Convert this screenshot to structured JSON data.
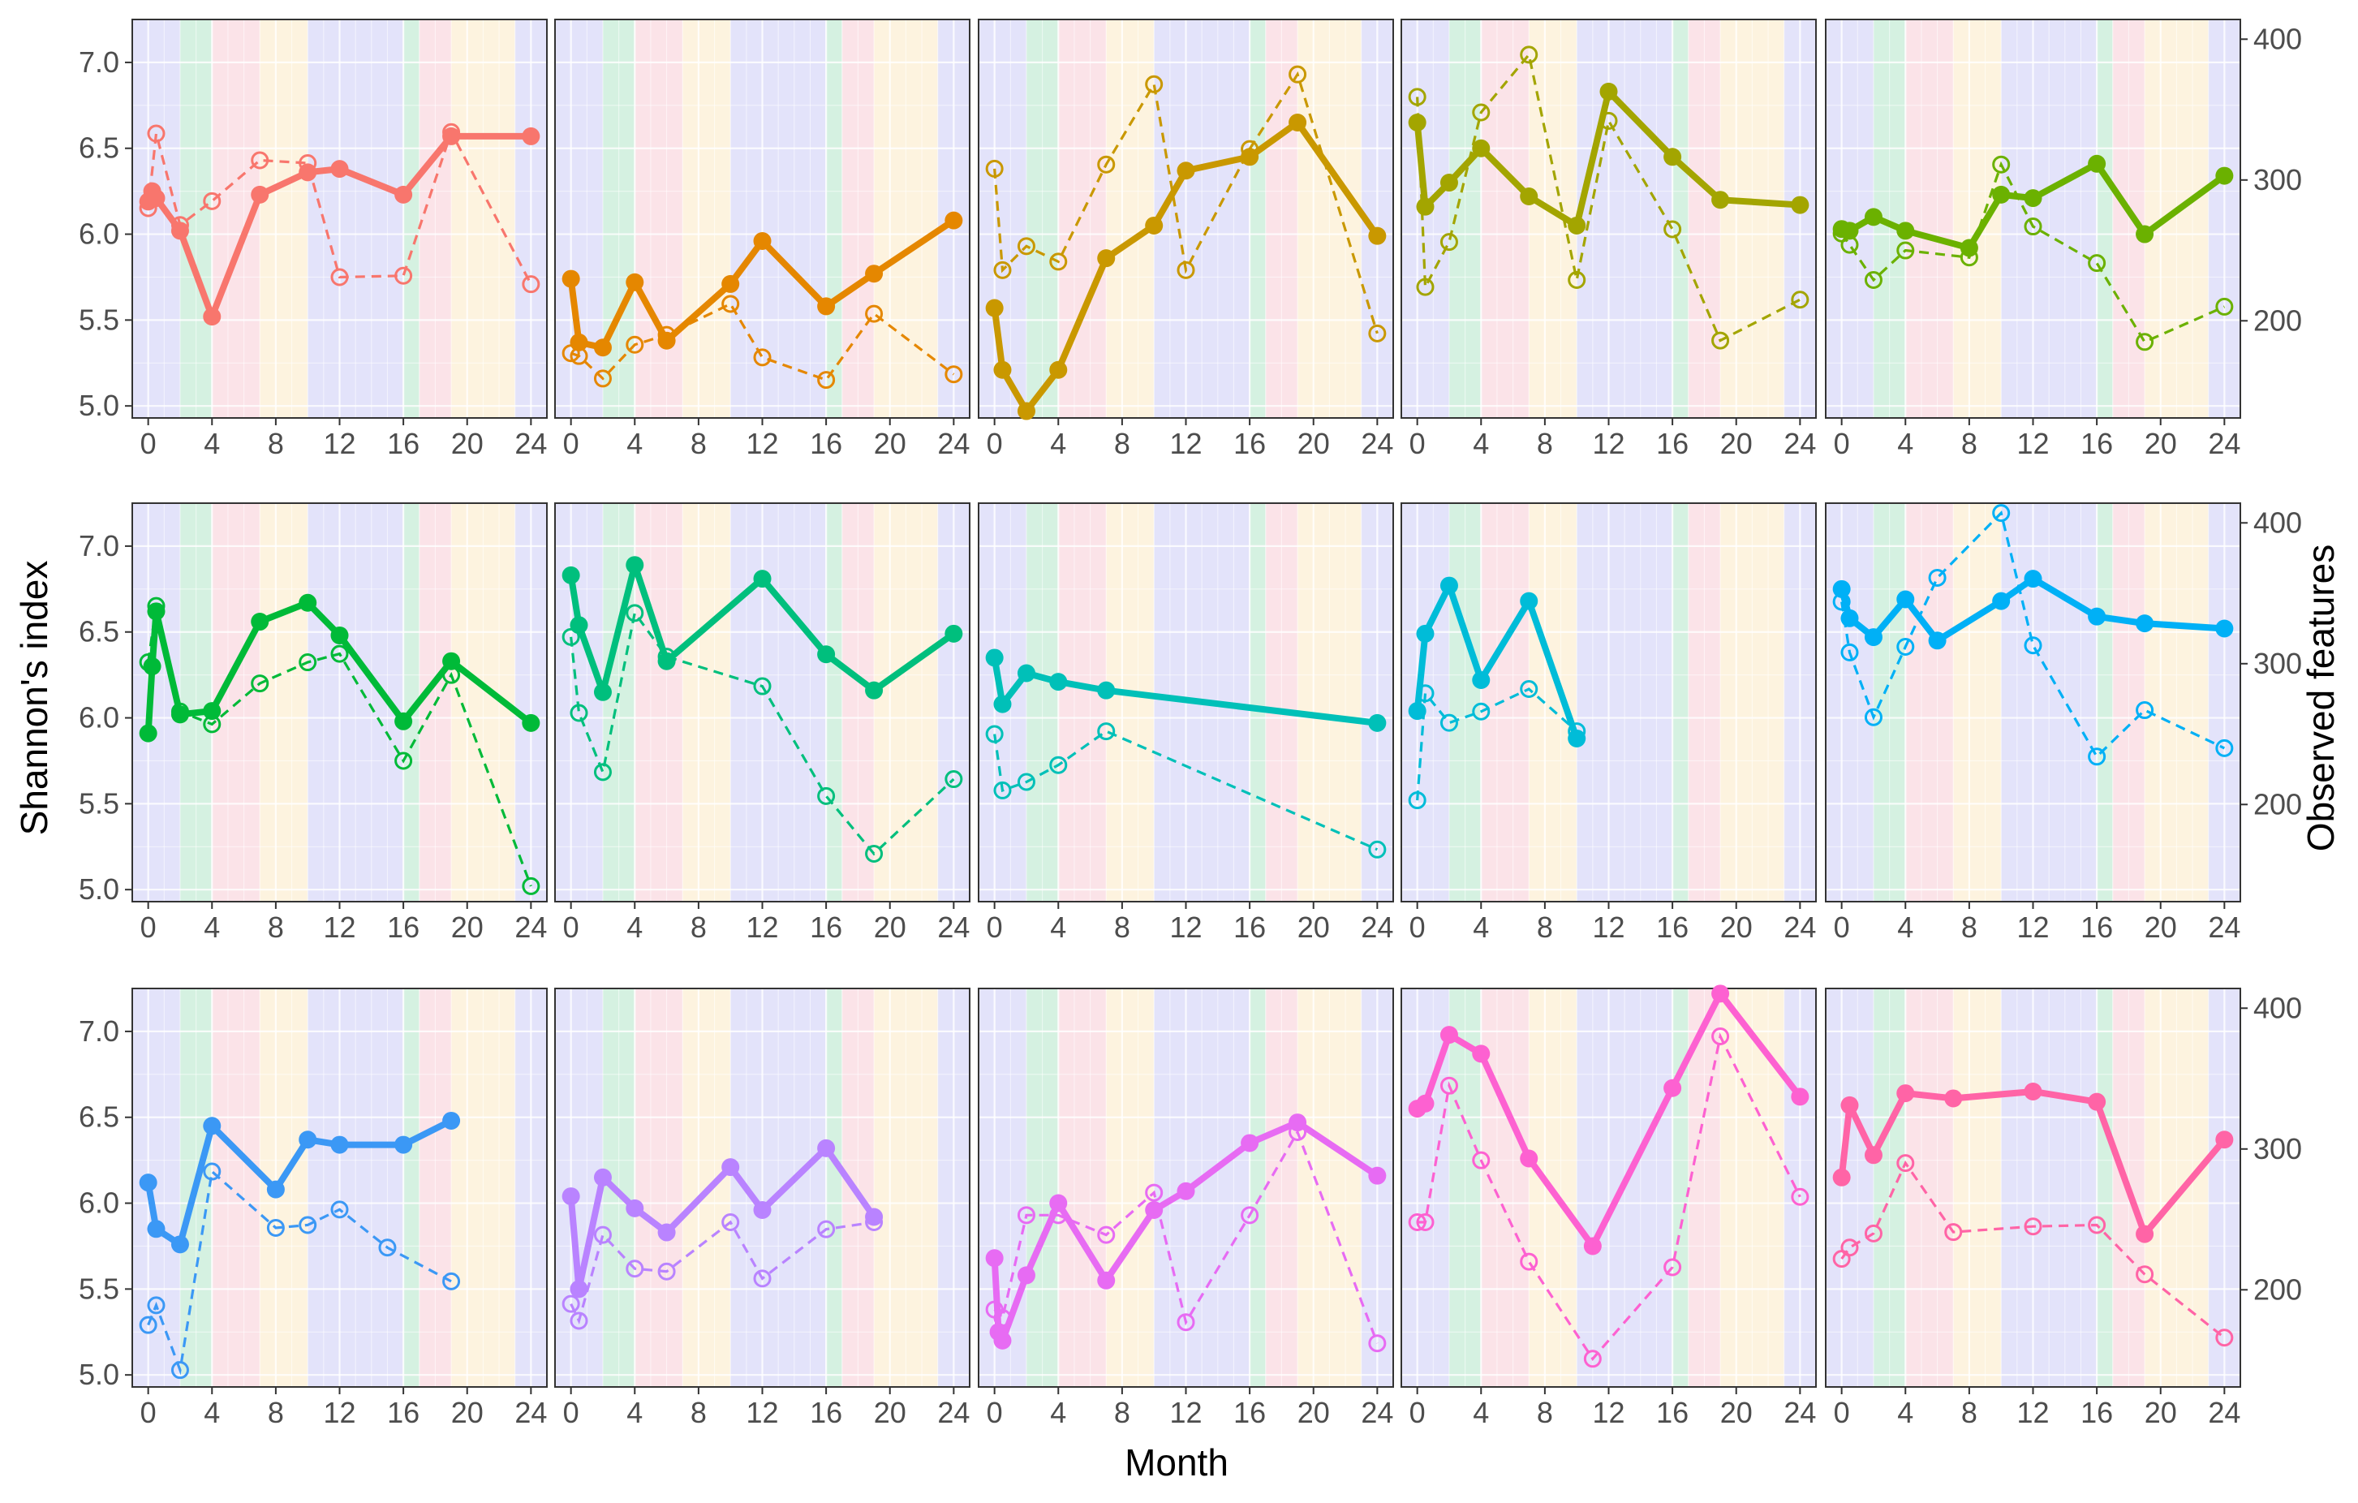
{
  "chart_data": {
    "type": "line",
    "layout": "3 x 5 facet grid",
    "xlabel": "Month",
    "ylabel_left": "Shannon's index",
    "ylabel_right": "Observed features",
    "x_ticks": [
      0,
      4,
      8,
      12,
      16,
      20,
      24
    ],
    "x_range": [
      -1,
      25
    ],
    "left_ticks": [
      "5.0",
      "5.5",
      "6.0",
      "6.5",
      "7.0"
    ],
    "left_range": [
      4.93,
      7.25
    ],
    "right_ticks": [
      "200",
      "300",
      "400"
    ],
    "right_range": [
      131,
      414
    ],
    "legend": {
      "solid line, filled points": "Shannon's index (left axis)",
      "dashed line, open points": "Observed features (right axis)"
    },
    "background_bands": [
      {
        "from": -1,
        "to": 2,
        "color": "#e3e3fa"
      },
      {
        "from": 2,
        "to": 4,
        "color": "#d5f1e1"
      },
      {
        "from": 4,
        "to": 7,
        "color": "#fbe3e8"
      },
      {
        "from": 7,
        "to": 10,
        "color": "#fdf3df"
      },
      {
        "from": 10,
        "to": 16,
        "color": "#e3e3fa"
      },
      {
        "from": 16,
        "to": 17,
        "color": "#d5f1e1"
      },
      {
        "from": 17,
        "to": 19,
        "color": "#fbe3e8"
      },
      {
        "from": 19,
        "to": 23,
        "color": "#fdf3df"
      },
      {
        "from": 23,
        "to": 25,
        "color": "#e3e3fa"
      }
    ],
    "panels": [
      {
        "color": "#f8766d",
        "shannon": [
          [
            0,
            6.19
          ],
          [
            0.25,
            6.25
          ],
          [
            0.5,
            6.21
          ],
          [
            2,
            6.02
          ],
          [
            4,
            5.52
          ],
          [
            7,
            6.23
          ],
          [
            10,
            6.36
          ],
          [
            12,
            6.38
          ],
          [
            16,
            6.23
          ],
          [
            19,
            6.57
          ],
          [
            24,
            6.57
          ]
        ],
        "observed": [
          [
            0,
            280
          ],
          [
            0.5,
            333
          ],
          [
            2,
            268
          ],
          [
            4,
            285
          ],
          [
            7,
            314
          ],
          [
            10,
            312
          ],
          [
            12,
            231
          ],
          [
            16,
            232
          ],
          [
            19,
            334
          ],
          [
            24,
            226
          ]
        ]
      },
      {
        "color": "#e58700",
        "shannon": [
          [
            0,
            5.74
          ],
          [
            0.5,
            5.37
          ],
          [
            2,
            5.34
          ],
          [
            4,
            5.72
          ],
          [
            6,
            5.38
          ],
          [
            10,
            5.71
          ],
          [
            12,
            5.96
          ],
          [
            16,
            5.58
          ],
          [
            19,
            5.77
          ],
          [
            24,
            6.08
          ]
        ],
        "observed": [
          [
            0,
            177
          ],
          [
            0.5,
            175
          ],
          [
            2,
            159
          ],
          [
            4,
            183
          ],
          [
            6,
            190
          ],
          [
            10,
            212
          ],
          [
            12,
            174
          ],
          [
            16,
            158
          ],
          [
            19,
            205
          ],
          [
            24,
            162
          ]
        ]
      },
      {
        "color": "#c99800",
        "shannon": [
          [
            0,
            5.57
          ],
          [
            0.5,
            5.21
          ],
          [
            2,
            4.97
          ],
          [
            4,
            5.21
          ],
          [
            7,
            5.86
          ],
          [
            10,
            6.05
          ],
          [
            12,
            6.37
          ],
          [
            16,
            6.45
          ],
          [
            19,
            6.65
          ],
          [
            24,
            5.99
          ]
        ],
        "observed": [
          [
            0,
            308
          ],
          [
            0.5,
            236
          ],
          [
            2,
            253
          ],
          [
            4,
            242
          ],
          [
            7,
            311
          ],
          [
            10,
            368
          ],
          [
            12,
            236
          ],
          [
            16,
            322
          ],
          [
            19,
            375
          ],
          [
            24,
            191
          ]
        ]
      },
      {
        "color": "#a3a500",
        "shannon": [
          [
            0,
            6.65
          ],
          [
            0.5,
            6.16
          ],
          [
            2,
            6.3
          ],
          [
            4,
            6.5
          ],
          [
            7,
            6.22
          ],
          [
            10,
            6.05
          ],
          [
            12,
            6.83
          ],
          [
            16,
            6.45
          ],
          [
            19,
            6.2
          ],
          [
            24,
            6.17
          ]
        ],
        "observed": [
          [
            0,
            359
          ],
          [
            0.5,
            224
          ],
          [
            2,
            256
          ],
          [
            4,
            348
          ],
          [
            7,
            389
          ],
          [
            10,
            229
          ],
          [
            12,
            342
          ],
          [
            16,
            265
          ],
          [
            19,
            186
          ],
          [
            24,
            215
          ]
        ]
      },
      {
        "color": "#6bb100",
        "shannon": [
          [
            0,
            6.03
          ],
          [
            0.5,
            6.02
          ],
          [
            2,
            6.1
          ],
          [
            4,
            6.02
          ],
          [
            8,
            5.92
          ],
          [
            10,
            6.23
          ],
          [
            12,
            6.21
          ],
          [
            16,
            6.41
          ],
          [
            19,
            6.0
          ],
          [
            24,
            6.34
          ]
        ],
        "observed": [
          [
            0,
            262
          ],
          [
            0.5,
            254
          ],
          [
            2,
            229
          ],
          [
            4,
            250
          ],
          [
            8,
            245
          ],
          [
            10,
            311
          ],
          [
            12,
            267
          ],
          [
            16,
            241
          ],
          [
            19,
            185
          ],
          [
            24,
            210
          ]
        ]
      },
      {
        "color": "#00ba38",
        "shannon": [
          [
            0,
            5.91
          ],
          [
            0.25,
            6.3
          ],
          [
            0.5,
            6.62
          ],
          [
            2,
            6.02
          ],
          [
            4,
            6.04
          ],
          [
            7,
            6.56
          ],
          [
            10,
            6.67
          ],
          [
            12,
            6.48
          ],
          [
            16,
            5.98
          ],
          [
            19,
            6.33
          ],
          [
            24,
            5.97
          ]
        ],
        "observed": [
          [
            0,
            301
          ],
          [
            0.5,
            341
          ],
          [
            2,
            266
          ],
          [
            4,
            257
          ],
          [
            7,
            286
          ],
          [
            10,
            301
          ],
          [
            12,
            307
          ],
          [
            16,
            231
          ],
          [
            19,
            292
          ],
          [
            24,
            142
          ]
        ]
      },
      {
        "color": "#00bf7d",
        "shannon": [
          [
            0,
            6.83
          ],
          [
            0.5,
            6.54
          ],
          [
            2,
            6.15
          ],
          [
            4,
            6.89
          ],
          [
            6,
            6.33
          ],
          [
            12,
            6.81
          ],
          [
            16,
            6.37
          ],
          [
            19,
            6.16
          ],
          [
            24,
            6.49
          ]
        ],
        "observed": [
          [
            0,
            319
          ],
          [
            0.5,
            265
          ],
          [
            2,
            223
          ],
          [
            4,
            336
          ],
          [
            6,
            305
          ],
          [
            12,
            284
          ],
          [
            16,
            206
          ],
          [
            19,
            165
          ],
          [
            24,
            218
          ]
        ]
      },
      {
        "color": "#00c0b8",
        "shannon": [
          [
            0,
            6.35
          ],
          [
            0.5,
            6.08
          ],
          [
            2,
            6.26
          ],
          [
            4,
            6.21
          ],
          [
            7,
            6.16
          ],
          [
            24,
            5.97
          ]
        ],
        "observed": [
          [
            0,
            250
          ],
          [
            0.5,
            210
          ],
          [
            2,
            216
          ],
          [
            4,
            228
          ],
          [
            7,
            252
          ],
          [
            24,
            168
          ]
        ]
      },
      {
        "color": "#00bcd8",
        "shannon": [
          [
            0,
            6.04
          ],
          [
            0.5,
            6.49
          ],
          [
            2,
            6.77
          ],
          [
            4,
            6.22
          ],
          [
            7,
            6.68
          ],
          [
            10,
            5.88
          ]
        ],
        "observed": [
          [
            0,
            203
          ],
          [
            0.5,
            279
          ],
          [
            2,
            258
          ],
          [
            4,
            266
          ],
          [
            7,
            282
          ],
          [
            10,
            252
          ]
        ]
      },
      {
        "color": "#00b0f6",
        "shannon": [
          [
            0,
            6.75
          ],
          [
            0.5,
            6.58
          ],
          [
            2,
            6.47
          ],
          [
            4,
            6.69
          ],
          [
            6,
            6.45
          ],
          [
            10,
            6.68
          ],
          [
            12,
            6.81
          ],
          [
            16,
            6.59
          ],
          [
            19,
            6.55
          ],
          [
            24,
            6.52
          ]
        ],
        "observed": [
          [
            0,
            344
          ],
          [
            0.5,
            308
          ],
          [
            2,
            262
          ],
          [
            4,
            312
          ],
          [
            6,
            361
          ],
          [
            10,
            407
          ],
          [
            12,
            313
          ],
          [
            16,
            234
          ],
          [
            19,
            267
          ],
          [
            24,
            240
          ]
        ]
      },
      {
        "color": "#3b98f5",
        "shannon": [
          [
            0,
            6.12
          ],
          [
            0.5,
            5.85
          ],
          [
            2,
            5.76
          ],
          [
            4,
            6.45
          ],
          [
            8,
            6.08
          ],
          [
            10,
            6.37
          ],
          [
            12,
            6.34
          ],
          [
            16,
            6.34
          ],
          [
            19,
            6.48
          ]
        ],
        "observed": [
          [
            0,
            175
          ],
          [
            0.5,
            189
          ],
          [
            2,
            143
          ],
          [
            4,
            284
          ],
          [
            8,
            244
          ],
          [
            10,
            246
          ],
          [
            12,
            257
          ],
          [
            15,
            230
          ],
          [
            19,
            206
          ]
        ]
      },
      {
        "color": "#b983ff",
        "shannon": [
          [
            0,
            6.04
          ],
          [
            0.5,
            5.5
          ],
          [
            2,
            6.15
          ],
          [
            4,
            5.97
          ],
          [
            6,
            5.83
          ],
          [
            10,
            6.21
          ],
          [
            12,
            5.96
          ],
          [
            16,
            6.32
          ],
          [
            19,
            5.92
          ]
        ],
        "observed": [
          [
            0,
            190
          ],
          [
            0.5,
            178
          ],
          [
            2,
            239
          ],
          [
            4,
            215
          ],
          [
            6,
            213
          ],
          [
            10,
            248
          ],
          [
            12,
            208
          ],
          [
            16,
            243
          ],
          [
            19,
            248
          ]
        ]
      },
      {
        "color": "#e76bf3",
        "shannon": [
          [
            0,
            5.68
          ],
          [
            0.25,
            5.25
          ],
          [
            0.5,
            5.2
          ],
          [
            2,
            5.58
          ],
          [
            4,
            6.0
          ],
          [
            7,
            5.55
          ],
          [
            10,
            5.96
          ],
          [
            12,
            6.07
          ],
          [
            16,
            6.35
          ],
          [
            19,
            6.47
          ],
          [
            24,
            6.16
          ]
        ],
        "observed": [
          [
            0,
            186
          ],
          [
            0.5,
            180
          ],
          [
            2,
            253
          ],
          [
            4,
            253
          ],
          [
            7,
            239
          ],
          [
            10,
            269
          ],
          [
            12,
            177
          ],
          [
            16,
            253
          ],
          [
            19,
            312
          ],
          [
            24,
            162
          ]
        ]
      },
      {
        "color": "#fd61d1",
        "shannon": [
          [
            0,
            6.55
          ],
          [
            0.5,
            6.58
          ],
          [
            2,
            6.98
          ],
          [
            4,
            6.87
          ],
          [
            7,
            6.26
          ],
          [
            11,
            5.75
          ],
          [
            16,
            6.67
          ],
          [
            19,
            7.22
          ],
          [
            24,
            6.62
          ]
        ],
        "observed": [
          [
            0,
            248
          ],
          [
            0.5,
            248
          ],
          [
            2,
            345
          ],
          [
            4,
            292
          ],
          [
            7,
            220
          ],
          [
            11,
            151
          ],
          [
            16,
            216
          ],
          [
            19,
            380
          ],
          [
            24,
            266
          ]
        ]
      },
      {
        "color": "#ff64a6",
        "shannon": [
          [
            0,
            6.15
          ],
          [
            0.5,
            6.57
          ],
          [
            2,
            6.28
          ],
          [
            4,
            6.64
          ],
          [
            7,
            6.61
          ],
          [
            12,
            6.65
          ],
          [
            16,
            6.59
          ],
          [
            19,
            5.82
          ],
          [
            24,
            6.37
          ]
        ],
        "observed": [
          [
            0,
            222
          ],
          [
            0.5,
            230
          ],
          [
            2,
            240
          ],
          [
            4,
            290
          ],
          [
            7,
            241
          ],
          [
            12,
            245
          ],
          [
            16,
            246
          ],
          [
            19,
            211
          ],
          [
            24,
            166
          ]
        ]
      }
    ]
  }
}
